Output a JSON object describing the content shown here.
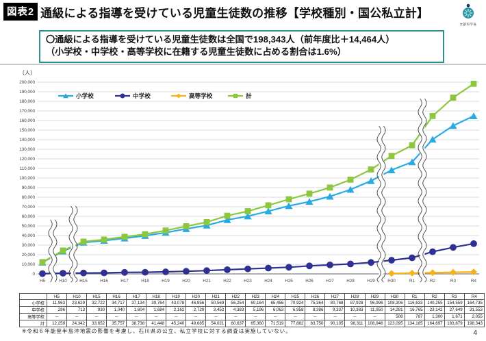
{
  "header": {
    "figure_label": "図表2",
    "title": "通級による指導を受けている児童生徒数の推移【学校種別・国公私立計】",
    "logo_text": "文部科学省"
  },
  "summary": {
    "line1": "〇通級による指導を受けている児童生徒数は全国で198,343人（前年度比＋14,464人）",
    "line2": "（小学校・中学校・高等学校に在籍する児童生徒数に占める割合は1.6%）",
    "border_color": "#2A9090"
  },
  "chart_data": {
    "type": "line",
    "title": "",
    "xlabel": "",
    "ylabel": "（人）",
    "ylim": [
      0,
      200000
    ],
    "ytick_step": 10000,
    "grid": "horizontal",
    "grid_color": "#D9D9D9",
    "axis_color": "#808080",
    "legend_position": "top",
    "axis_breaks_between": [
      [
        "H5",
        "H10"
      ],
      [
        "H10",
        "H15"
      ],
      [
        "H29",
        "H30"
      ],
      [
        "R1",
        "R2"
      ]
    ],
    "categories": [
      "H5",
      "H10",
      "H15",
      "H16",
      "H17",
      "H18",
      "H19",
      "H20",
      "H21",
      "H22",
      "H23",
      "H24",
      "H25",
      "H26",
      "H27",
      "H28",
      "H29",
      "H30",
      "R1",
      "R2",
      "R3",
      "R4"
    ],
    "series": [
      {
        "name": "小学校",
        "color": "#29ABE2",
        "marker": "triangle",
        "values": [
          11963,
          23629,
          32722,
          34717,
          37134,
          39764,
          43078,
          46956,
          50569,
          56254,
          60164,
          65456,
          70924,
          75364,
          80768,
          87928,
          96996,
          108306,
          116633,
          140255,
          154559,
          164735
        ]
      },
      {
        "name": "中学校",
        "color": "#2E3192",
        "marker": "circle",
        "values": [
          296,
          713,
          930,
          1040,
          1604,
          1684,
          2162,
          2729,
          3452,
          4383,
          5196,
          6063,
          6958,
          8386,
          9337,
          10383,
          11950,
          14281,
          16765,
          23142,
          27649,
          31553
        ]
      },
      {
        "name": "高等学校",
        "color": "#F9B115",
        "marker": "diamond",
        "values": [
          null,
          null,
          null,
          null,
          null,
          null,
          null,
          null,
          null,
          null,
          null,
          null,
          null,
          null,
          null,
          null,
          null,
          508,
          787,
          1300,
          1671,
          2055
        ]
      },
      {
        "name": "計",
        "color": "#8DC63F",
        "marker": "square",
        "values": [
          12259,
          24342,
          33652,
          35757,
          38738,
          41448,
          45240,
          49685,
          54021,
          60637,
          65360,
          71519,
          77882,
          83750,
          90105,
          98311,
          108946,
          123095,
          134185,
          164697,
          183879,
          198343
        ]
      }
    ]
  },
  "table": {
    "col_headers": [
      "",
      "H5",
      "H10",
      "H15",
      "H16",
      "H17",
      "H18",
      "H19",
      "H20",
      "H21",
      "H22",
      "H23",
      "H24",
      "H25",
      "H26",
      "H27",
      "H28",
      "H29",
      "H30",
      "R1",
      "R2",
      "R3",
      "R4"
    ],
    "rows": [
      {
        "label": "小学校",
        "values": [
          "11,963",
          "23,629",
          "32,722",
          "34,717",
          "37,134",
          "39,764",
          "43,078",
          "46,956",
          "50,569",
          "56,254",
          "60,164",
          "65,456",
          "70,924",
          "75,364",
          "80,768",
          "87,928",
          "96,996",
          "108,306",
          "116,633",
          "140,255",
          "154,559",
          "164,735"
        ]
      },
      {
        "label": "中学校",
        "values": [
          "296",
          "713",
          "930",
          "1,040",
          "1,604",
          "1,684",
          "2,162",
          "2,729",
          "3,452",
          "4,383",
          "5,196",
          "6,063",
          "6,958",
          "8,386",
          "9,337",
          "10,383",
          "11,950",
          "14,281",
          "16,765",
          "23,142",
          "27,649",
          "31,553"
        ]
      },
      {
        "label": "高等学校",
        "values": [
          "－",
          "－",
          "－",
          "－",
          "－",
          "－",
          "－",
          "－",
          "－",
          "－",
          "－",
          "－",
          "－",
          "－",
          "－",
          "－",
          "－",
          "508",
          "787",
          "1,300",
          "1,671",
          "2,055"
        ]
      },
      {
        "label": "計",
        "values": [
          "12,259",
          "24,342",
          "33,652",
          "35,757",
          "38,738",
          "41,448",
          "45,240",
          "49,685",
          "54,021",
          "60,637",
          "65,360",
          "71,519",
          "77,882",
          "83,750",
          "90,105",
          "98,311",
          "108,946",
          "123,095",
          "134,185",
          "164,697",
          "183,879",
          "198,343"
        ]
      }
    ]
  },
  "footnote": "※令和６年能登半島沖地震の影響を考慮し、石川県の公立、私立学校に対する調査は実施していない。",
  "page_number": "4"
}
